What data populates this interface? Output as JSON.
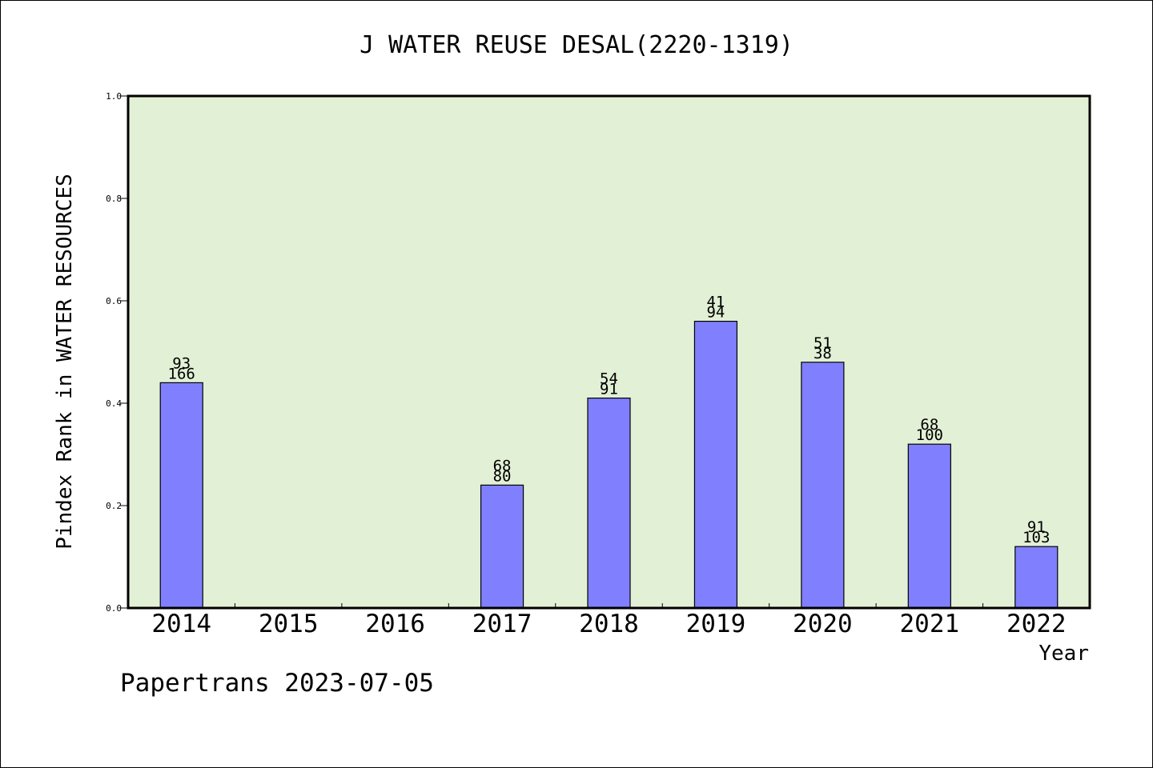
{
  "chart_data": {
    "type": "bar",
    "title": "J WATER REUSE DESAL(2220-1319)",
    "xlabel": "Year",
    "ylabel": "Pindex Rank in WATER RESOURCES",
    "ylim": [
      0.0,
      1.0
    ],
    "yticks": [
      "0.0",
      "0.2",
      "0.4",
      "0.6",
      "0.8",
      "1.0"
    ],
    "categories": [
      "2014",
      "2015",
      "2016",
      "2017",
      "2018",
      "2019",
      "2020",
      "2021",
      "2022"
    ],
    "values": [
      0.44,
      null,
      null,
      0.24,
      0.41,
      0.56,
      0.48,
      0.32,
      0.12
    ],
    "labels_top": [
      "93",
      "",
      "",
      "68",
      "54",
      "41",
      "51",
      "68",
      "91"
    ],
    "labels_bottom": [
      "166",
      "",
      "",
      "80",
      "91",
      "94",
      "38",
      "100",
      "103"
    ],
    "grid": false,
    "colors": {
      "plot_bg": "#e2f0d5",
      "bar": "#8080ff",
      "bar_edge": "#000000"
    }
  },
  "footer": {
    "text": "Papertrans 2023-07-05"
  }
}
